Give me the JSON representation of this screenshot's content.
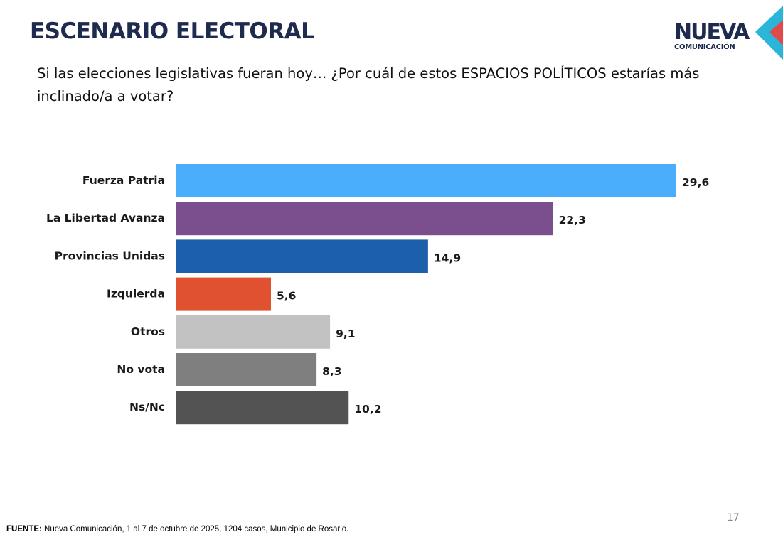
{
  "chart_data": {
    "type": "bar",
    "orientation": "horizontal",
    "title": "ESCENARIO ELECTORAL",
    "subtitle": "Si las elecciones legislativas fueran hoy… ¿Por cuál de estos ESPACIOS POLÍTICOS estarías más inclinado/a a votar?",
    "categories": [
      "Fuerza Patria",
      "La Libertad Avanza",
      "Provincias Unidas",
      "Izquierda",
      "Otros",
      "No vota",
      "Ns/Nc"
    ],
    "values": [
      29.6,
      22.3,
      14.9,
      5.6,
      9.1,
      8.3,
      10.2
    ],
    "value_labels": [
      "29,6",
      "22,3",
      "14,9",
      "5,6",
      "9,1",
      "8,3",
      "10,2"
    ],
    "colors": [
      "#4aaefc",
      "#7b4f8e",
      "#1c5fab",
      "#e0522f",
      "#c2c2c2",
      "#7f7f7f",
      "#535353"
    ]
  },
  "logo": {
    "top": "NUEVA",
    "bottom": "COMUNICACIÓN"
  },
  "page_number": 17,
  "source": {
    "label": "FUENTE:",
    "text": "Nueva Comunicación, 1 al 7 de octubre de 2025, 1204 casos, Municipio de Rosario."
  }
}
